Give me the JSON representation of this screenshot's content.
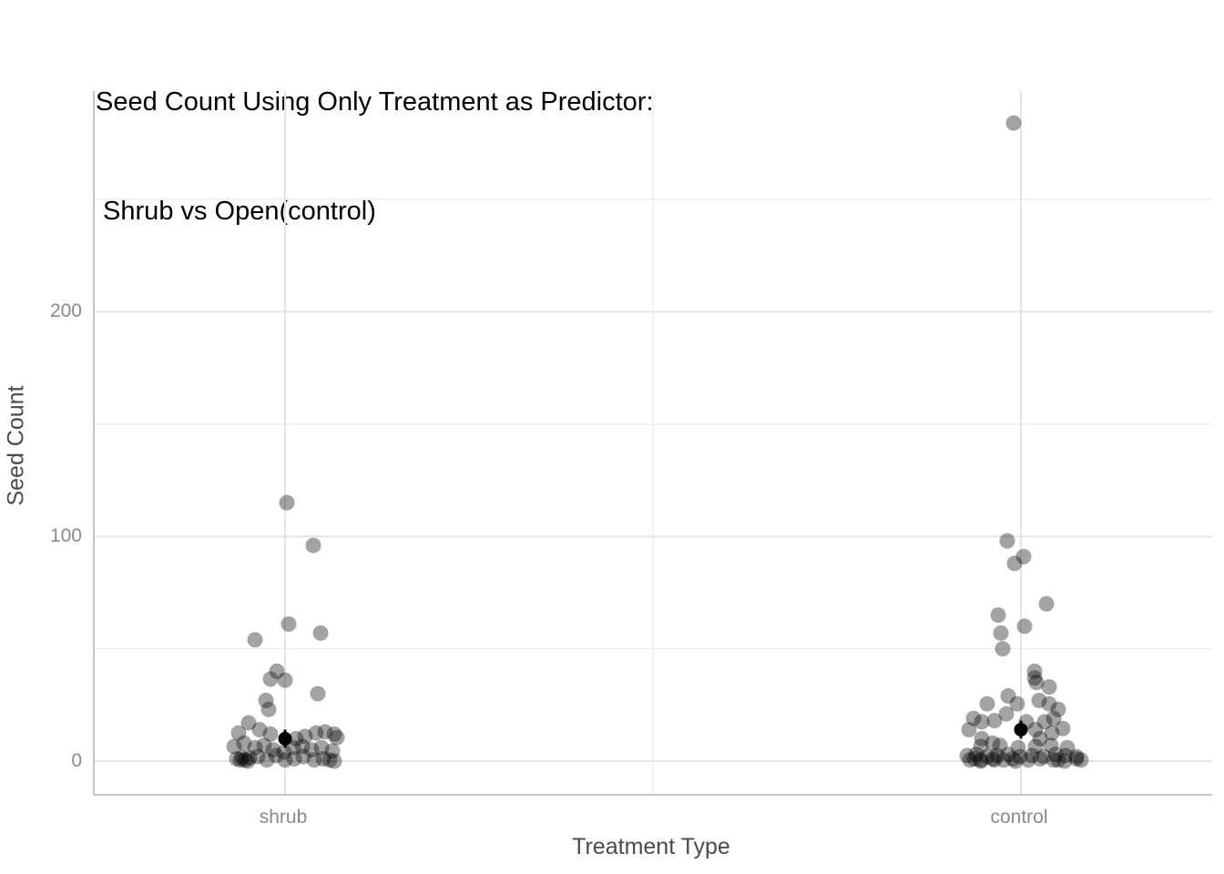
{
  "title": {
    "line1": "Seed Count Using Only Treatment as Predictor:",
    "line2": " Shrub vs Open(control)"
  },
  "y_axis": {
    "title": "Seed Count",
    "tick_labels": [
      "0",
      "100",
      "200"
    ]
  },
  "x_axis": {
    "title": "Treatment Type",
    "tick_labels": [
      "shrub",
      "control"
    ]
  },
  "colors": {
    "title_text": "#000000",
    "axis_title_text": "#4a4a4a",
    "tick_label_text": "#8a8a8a",
    "axis_line": "#c6c6c6",
    "grid_major": "#e4e4e4",
    "grid_minor": "#efefef",
    "point": "#000000",
    "mean_point": "#000000",
    "background": "#ffffff"
  },
  "chart_data": {
    "type": "scatter",
    "title": "Seed Count Using Only Treatment as Predictor: Shrub vs Open(control)",
    "xlabel": "Treatment Type",
    "ylabel": "Seed Count",
    "categories": [
      "shrub",
      "control"
    ],
    "ylim": [
      -14.5,
      298
    ],
    "y_major_breaks": [
      0,
      100,
      200
    ],
    "y_minor_breaks": [
      50,
      150,
      250
    ],
    "grid": true,
    "legend": "none",
    "point_style": {
      "color": "#000000",
      "opacity": 0.36,
      "radius": 8.5
    },
    "means": [
      {
        "category": "shrub",
        "mean": 10,
        "se": 4
      },
      {
        "category": "control",
        "mean": 14,
        "se": 4
      }
    ],
    "series": [
      {
        "name": "shrub",
        "points": [
          [
            2,
            115
          ],
          [
            31,
            96
          ],
          [
            4,
            61
          ],
          [
            39,
            57
          ],
          [
            -33,
            54
          ],
          [
            -9,
            40
          ],
          [
            -16,
            36.5
          ],
          [
            0,
            36
          ],
          [
            36,
            30
          ],
          [
            -21,
            27
          ],
          [
            -18,
            23
          ],
          [
            -40,
            17
          ],
          [
            -51,
            12.5
          ],
          [
            -28,
            14
          ],
          [
            -16,
            12
          ],
          [
            12,
            10
          ],
          [
            22,
            11
          ],
          [
            34,
            12.5
          ],
          [
            44,
            13
          ],
          [
            54,
            12
          ],
          [
            57,
            10.5
          ],
          [
            -56,
            6.5
          ],
          [
            -45,
            8
          ],
          [
            -33,
            6
          ],
          [
            -23,
            7
          ],
          [
            -13,
            5
          ],
          [
            -1,
            4
          ],
          [
            9,
            6
          ],
          [
            19,
            6.5
          ],
          [
            29,
            5
          ],
          [
            40,
            6
          ],
          [
            52,
            4.5
          ],
          [
            -53,
            1
          ],
          [
            -49,
            0.5
          ],
          [
            -41,
            0
          ],
          [
            -39,
            1.5
          ],
          [
            -30,
            2
          ],
          [
            -20,
            0.5
          ],
          [
            -10,
            2.5
          ],
          [
            0,
            0.5
          ],
          [
            10,
            1
          ],
          [
            20,
            2
          ],
          [
            32,
            0.5
          ],
          [
            42,
            1
          ],
          [
            54,
            0
          ],
          [
            49,
            0.5
          ],
          [
            -47,
            1.5
          ],
          [
            -44,
            0.5
          ]
        ]
      },
      {
        "name": "control",
        "points": [
          [
            -8,
            284
          ],
          [
            -15,
            98
          ],
          [
            3,
            91
          ],
          [
            -7,
            88
          ],
          [
            28,
            70
          ],
          [
            -25,
            65
          ],
          [
            4,
            60
          ],
          [
            -22,
            57
          ],
          [
            -20,
            50
          ],
          [
            15,
            40
          ],
          [
            15,
            37
          ],
          [
            17,
            35
          ],
          [
            31,
            33
          ],
          [
            -14,
            29
          ],
          [
            20,
            27
          ],
          [
            31,
            25.5
          ],
          [
            -4,
            25.5
          ],
          [
            -37,
            25.5
          ],
          [
            41,
            23
          ],
          [
            -16,
            21
          ],
          [
            -52,
            19
          ],
          [
            36,
            19
          ],
          [
            -29,
            18
          ],
          [
            -43,
            17.5
          ],
          [
            6,
            17.5
          ],
          [
            26,
            17.5
          ],
          [
            -57,
            14
          ],
          [
            16,
            14
          ],
          [
            46,
            14.5
          ],
          [
            34,
            12.5
          ],
          [
            21,
            10
          ],
          [
            -43,
            10
          ],
          [
            -31,
            8
          ],
          [
            -44,
            6.5
          ],
          [
            -23,
            7
          ],
          [
            -3,
            6
          ],
          [
            16,
            6.5
          ],
          [
            33,
            7
          ],
          [
            51,
            6
          ],
          [
            -59,
            2.5
          ],
          [
            -49,
            3
          ],
          [
            -37,
            2
          ],
          [
            -26,
            2.5
          ],
          [
            -14,
            3
          ],
          [
            -1,
            2
          ],
          [
            12,
            2.5
          ],
          [
            25,
            2
          ],
          [
            38,
            3
          ],
          [
            49,
            2.5
          ],
          [
            61,
            2
          ],
          [
            -56,
            0.5
          ],
          [
            -44,
            0
          ],
          [
            -31,
            1
          ],
          [
            -19,
            0.5
          ],
          [
            -6,
            0
          ],
          [
            8,
            0.5
          ],
          [
            21,
            1
          ],
          [
            36,
            0.5
          ],
          [
            48,
            0
          ],
          [
            66,
            0.5
          ],
          [
            -51,
            1
          ],
          [
            -44,
            0.5
          ],
          [
            41,
            0.5
          ],
          [
            61,
            1
          ],
          [
            -29,
            0.5
          ],
          [
            -9,
            1
          ]
        ]
      }
    ]
  }
}
